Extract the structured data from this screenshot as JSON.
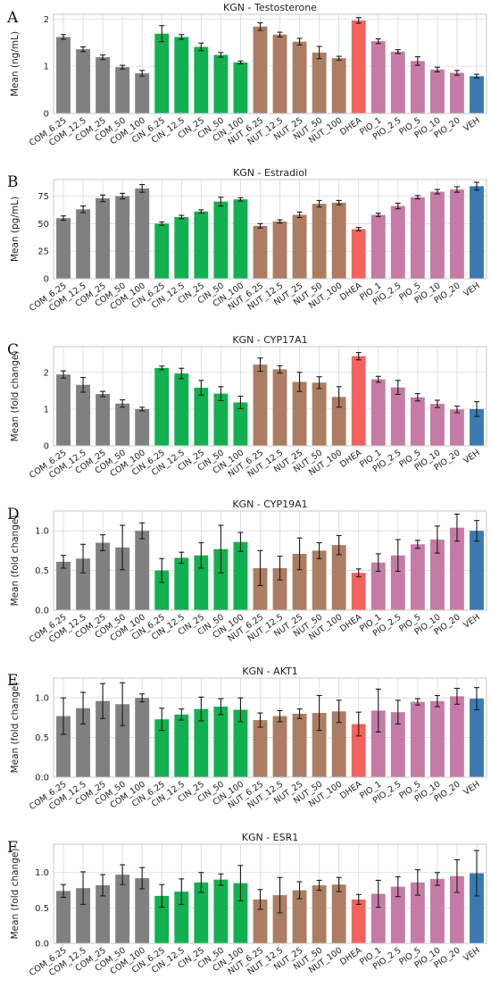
{
  "chart_data": [
    {
      "type": "bar",
      "panel": "A",
      "title": "KGN - Testosterone",
      "ylabel": "Mean (ng/mL)",
      "ylim": [
        0,
        2.1
      ],
      "yticks": [
        0,
        1,
        2
      ],
      "categories": [
        "COM_6.25",
        "COM_12.5",
        "COM_25",
        "COM_50",
        "COM_100",
        "CIN_6.25",
        "CIN_12.5",
        "CIN_25",
        "CIN_50",
        "CIN_100",
        "NUT_6.25",
        "NUT_12.5",
        "NUT_25",
        "NUT_50",
        "NUT_100",
        "DHEA",
        "PIO_1",
        "PIO_2.5",
        "PIO_5",
        "PIO_10",
        "PIO_20",
        "VEH"
      ],
      "values": [
        1.62,
        1.36,
        1.19,
        0.98,
        0.85,
        1.69,
        1.62,
        1.41,
        1.24,
        1.08,
        1.84,
        1.67,
        1.52,
        1.29,
        1.17,
        1.97,
        1.53,
        1.31,
        1.11,
        0.93,
        0.86,
        0.79
      ],
      "errors": [
        0.05,
        0.05,
        0.05,
        0.04,
        0.06,
        0.17,
        0.05,
        0.08,
        0.05,
        0.03,
        0.08,
        0.05,
        0.07,
        0.13,
        0.04,
        0.06,
        0.05,
        0.04,
        0.09,
        0.05,
        0.05,
        0.04
      ]
    },
    {
      "type": "bar",
      "panel": "B",
      "title": "KGN - Estradiol",
      "ylabel": "Mean (pg/mL)",
      "ylim": [
        0,
        90
      ],
      "yticks": [
        0,
        25,
        50,
        75
      ],
      "categories": [
        "COM_6.25",
        "COM_12.5",
        "COM_25",
        "COM_50",
        "COM_100",
        "CIN_6.25",
        "CIN_12.5",
        "CIN_25",
        "CIN_50",
        "CIN_100",
        "NUT_6.25",
        "NUT_12.5",
        "NUT_25",
        "NUT_50",
        "NUT_100",
        "DHEA",
        "PIO_1",
        "PIO_2.5",
        "PIO_5",
        "PIO_10",
        "PIO_20",
        "VEH"
      ],
      "values": [
        55,
        63,
        73,
        75,
        82,
        50,
        56,
        61,
        70,
        72,
        48,
        52,
        58,
        68,
        69,
        45,
        58,
        66,
        74,
        79,
        81,
        84
      ],
      "errors": [
        2,
        3,
        3,
        2.5,
        3.5,
        1.5,
        1.5,
        1.5,
        4,
        1.5,
        2,
        1.5,
        2.5,
        3,
        2,
        1.5,
        1.5,
        2.5,
        1.5,
        2,
        2.5,
        3.5
      ]
    },
    {
      "type": "bar",
      "panel": "C",
      "title": "KGN - CYP17A1",
      "ylabel": "Mean (fold change)",
      "ylim": [
        0,
        2.7
      ],
      "yticks": [
        0,
        1,
        2
      ],
      "categories": [
        "COM_6.25",
        "COM_12.5",
        "COM_25",
        "COM_50",
        "COM_100",
        "CIN_6.25",
        "CIN_12.5",
        "CIN_25",
        "CIN_50",
        "CIN_100",
        "NUT_6.25",
        "NUT_12.5",
        "NUT_25",
        "NUT_50",
        "NUT_100",
        "DHEA",
        "PIO_1",
        "PIO_2.5",
        "PIO_5",
        "PIO_10",
        "PIO_20",
        "VEH"
      ],
      "values": [
        1.94,
        1.66,
        1.41,
        1.15,
        1.0,
        2.12,
        1.97,
        1.58,
        1.42,
        1.18,
        2.21,
        2.08,
        1.74,
        1.72,
        1.33,
        2.44,
        1.81,
        1.59,
        1.32,
        1.14,
        0.99,
        1.0
      ],
      "errors": [
        0.1,
        0.2,
        0.07,
        0.1,
        0.05,
        0.05,
        0.14,
        0.2,
        0.19,
        0.17,
        0.18,
        0.1,
        0.26,
        0.16,
        0.28,
        0.1,
        0.08,
        0.19,
        0.1,
        0.1,
        0.09,
        0.2
      ]
    },
    {
      "type": "bar",
      "panel": "D",
      "title": "KGN - CYP19A1",
      "ylabel": "Mean (fold change)",
      "ylim": [
        0,
        1.25
      ],
      "yticks": [
        0.0,
        0.5,
        1.0
      ],
      "categories": [
        "COM_6.25",
        "COM_12.5",
        "COM_25",
        "COM_50",
        "COM_100",
        "CIN_6.25",
        "CIN_12.5",
        "CIN_25",
        "CIN_50",
        "CIN_100",
        "NUT_6.25",
        "NUT_12.5",
        "NUT_25",
        "NUT_50",
        "NUT_100",
        "DHEA",
        "PIO_1",
        "PIO_2.5",
        "PIO_5",
        "PIO_10",
        "PIO_20",
        "VEH"
      ],
      "values": [
        0.61,
        0.65,
        0.85,
        0.79,
        1.0,
        0.5,
        0.66,
        0.69,
        0.77,
        0.86,
        0.53,
        0.53,
        0.71,
        0.75,
        0.82,
        0.47,
        0.6,
        0.69,
        0.83,
        0.89,
        1.04,
        1.0
      ],
      "errors": [
        0.08,
        0.18,
        0.1,
        0.28,
        0.1,
        0.15,
        0.07,
        0.16,
        0.3,
        0.12,
        0.22,
        0.15,
        0.2,
        0.1,
        0.12,
        0.05,
        0.11,
        0.2,
        0.05,
        0.17,
        0.17,
        0.13
      ]
    },
    {
      "type": "bar",
      "panel": "E",
      "title": "KGN - AKT1",
      "ylabel": "Mean (fold change)",
      "ylim": [
        0,
        1.25
      ],
      "yticks": [
        0.0,
        0.5,
        1.0
      ],
      "categories": [
        "COM_6.25",
        "COM_12.5",
        "COM_25",
        "COM_50",
        "COM_100",
        "CIN_6.25",
        "CIN_12.5",
        "CIN_25",
        "CIN_50",
        "CIN_100",
        "NUT_6.25",
        "NUT_12.5",
        "NUT_25",
        "NUT_50",
        "NUT_100",
        "DHEA",
        "PIO_1",
        "PIO_2.5",
        "PIO_5",
        "PIO_10",
        "PIO_20",
        "VEH"
      ],
      "values": [
        0.77,
        0.87,
        0.96,
        0.92,
        1.0,
        0.73,
        0.79,
        0.86,
        0.89,
        0.85,
        0.72,
        0.77,
        0.8,
        0.81,
        0.83,
        0.67,
        0.84,
        0.82,
        0.95,
        0.96,
        1.02,
        0.99
      ],
      "errors": [
        0.23,
        0.2,
        0.22,
        0.27,
        0.05,
        0.14,
        0.07,
        0.15,
        0.1,
        0.15,
        0.09,
        0.07,
        0.06,
        0.22,
        0.14,
        0.15,
        0.27,
        0.15,
        0.04,
        0.07,
        0.1,
        0.14
      ]
    },
    {
      "type": "bar",
      "panel": "F",
      "title": "KGN - ESR1",
      "ylabel": "Mean (fold change)",
      "ylim": [
        0,
        1.4
      ],
      "yticks": [
        0.0,
        0.5,
        1.0
      ],
      "categories": [
        "COM_6.25",
        "COM_12.5",
        "COM_25",
        "COM_50",
        "COM_100",
        "CIN_6.25",
        "CIN_12.5",
        "CIN_25",
        "CIN_50",
        "CIN_100",
        "NUT_6.25",
        "NUT_12.5",
        "NUT_25",
        "NUT_50",
        "NUT_100",
        "DHEA",
        "PIO_1",
        "PIO_2.5",
        "PIO_5",
        "PIO_10",
        "PIO_20",
        "VEH"
      ],
      "values": [
        0.74,
        0.78,
        0.82,
        0.97,
        0.92,
        0.67,
        0.73,
        0.86,
        0.9,
        0.85,
        0.62,
        0.68,
        0.75,
        0.82,
        0.83,
        0.62,
        0.7,
        0.8,
        0.86,
        0.91,
        0.95,
        0.99
      ],
      "errors": [
        0.09,
        0.23,
        0.15,
        0.14,
        0.15,
        0.16,
        0.18,
        0.14,
        0.08,
        0.25,
        0.14,
        0.25,
        0.12,
        0.07,
        0.1,
        0.07,
        0.19,
        0.14,
        0.18,
        0.09,
        0.23,
        0.32
      ]
    }
  ],
  "colors": {
    "COM": "#808080",
    "CIN": "#12b050",
    "NUT": "#ac7d62",
    "DHEA": "#f5625d",
    "PIO": "#c57ba6",
    "VEH": "#3a7ab0"
  }
}
